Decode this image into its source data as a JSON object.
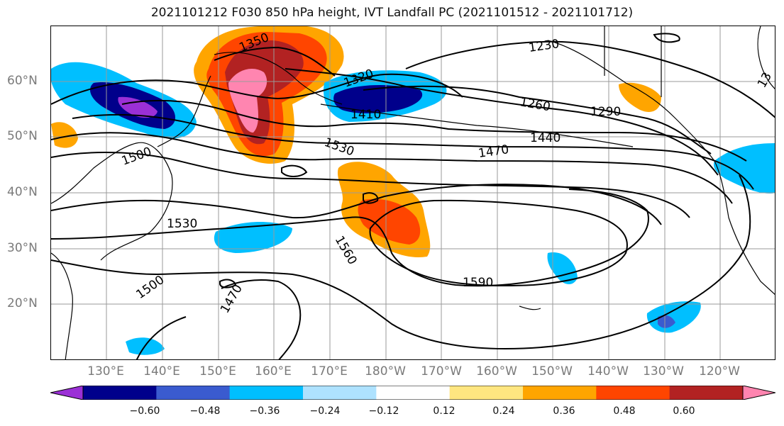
{
  "title": "2021101212 F030 850 hPa height, IVT Landfall PC (2021101512 - 2021101712)",
  "lat_labels": [
    "60°N",
    "50°N",
    "40°N",
    "30°N",
    "20°N"
  ],
  "lon_labels": [
    "130°E",
    "140°E",
    "150°E",
    "160°E",
    "170°E",
    "180°W",
    "170°W",
    "160°W",
    "150°W",
    "140°W",
    "130°W",
    "120°W"
  ],
  "contour_labels": [
    "1350",
    "1320",
    "1410",
    "1230",
    "1260",
    "1290",
    "1440",
    "1470",
    "1500",
    "1530",
    "1530",
    "1560",
    "1590",
    "1500",
    "1470",
    "13"
  ],
  "colorbar": {
    "colors": [
      "#9b30d6",
      "#00008b",
      "#3a5bcf",
      "#00bfff",
      "#aee2ff",
      "#ffffff",
      "#ffe680",
      "#ffa500",
      "#ff4500",
      "#b22222",
      "#ff85b0"
    ],
    "ticks": [
      "−0.60",
      "−0.48",
      "−0.36",
      "−0.24",
      "−0.12",
      "0.12",
      "0.24",
      "0.36",
      "0.48",
      "0.60"
    ]
  },
  "colors": {
    "purple": "#9b30d6",
    "navy": "#00008b",
    "blue": "#3a5bcf",
    "cyan": "#00bfff",
    "lightblue": "#aee2ff",
    "yellow": "#ffe680",
    "orange": "#ffa500",
    "redorange": "#ff4500",
    "darkred": "#b22222",
    "pink": "#ff85b0"
  }
}
